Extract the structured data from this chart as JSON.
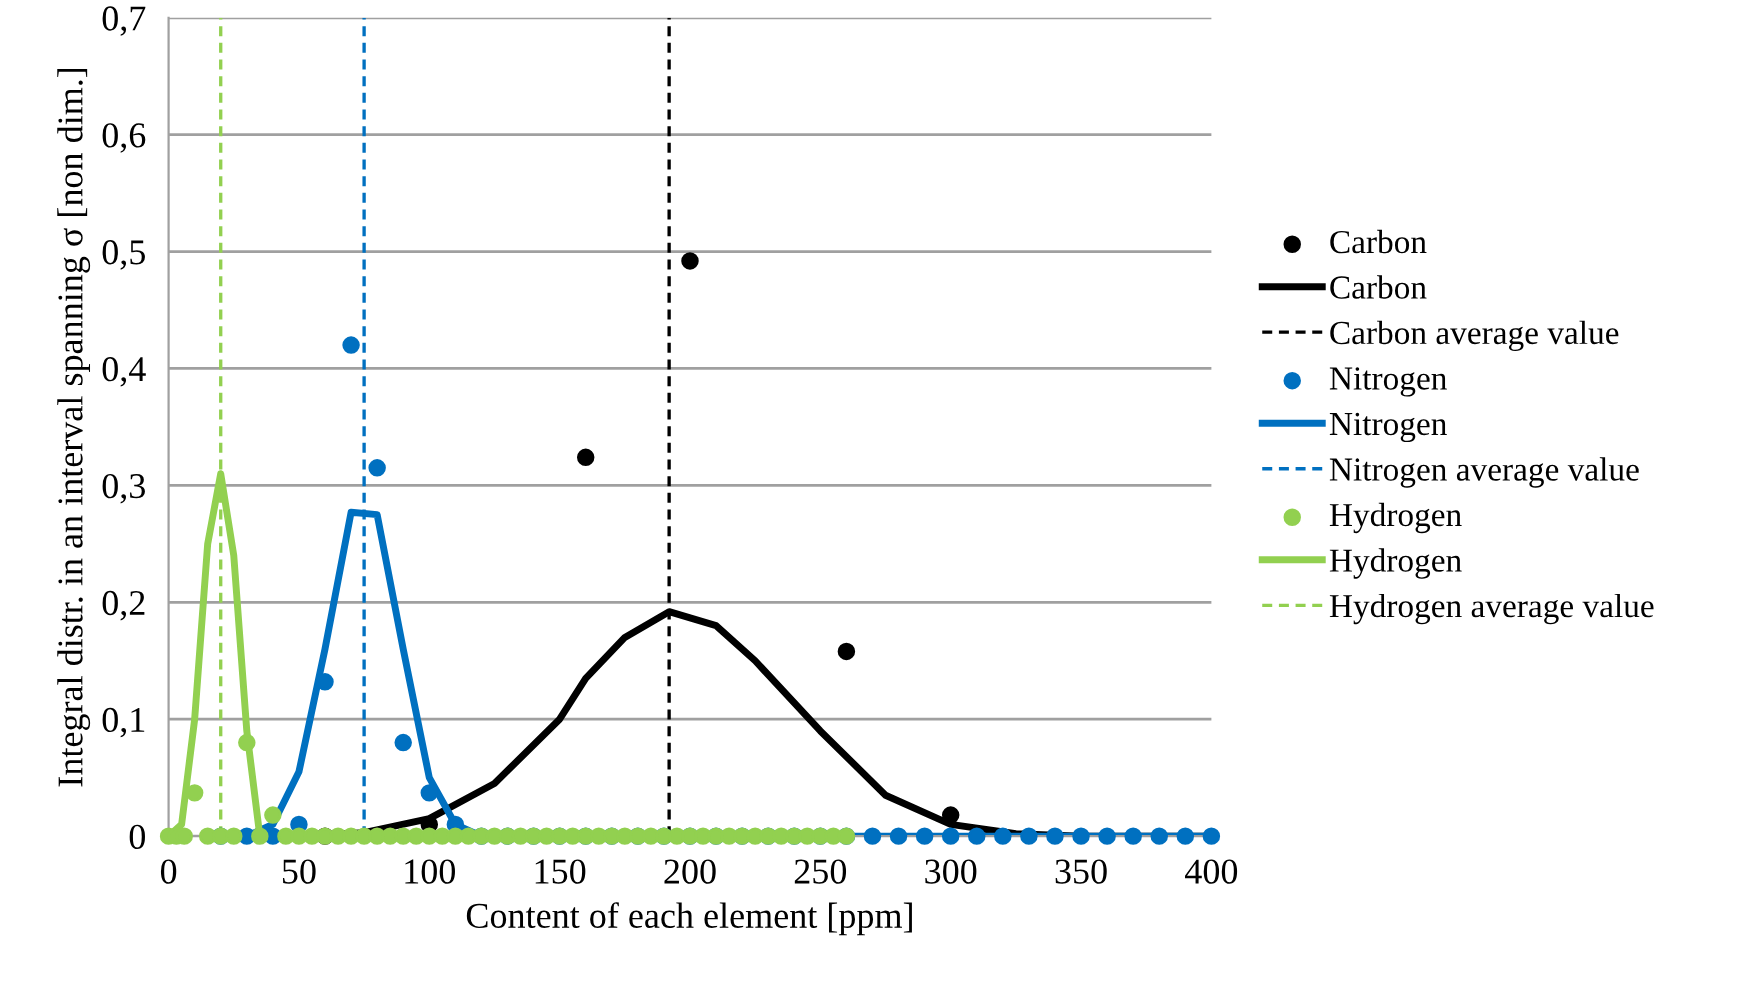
{
  "chart_data": {
    "type": "scatter",
    "xlabel": "Content of each element [ppm]",
    "ylabel": "Integral distr. in an interval spanning σ [non dim.]",
    "xlim": [
      0,
      400
    ],
    "xticks": [
      0,
      50,
      100,
      150,
      200,
      250,
      300,
      350,
      400
    ],
    "ylim": [
      0,
      0.7
    ],
    "yticks": [
      0,
      {
        "value": 0.1,
        "label": "0,1"
      },
      {
        "value": 0.2,
        "label": "0,2"
      },
      {
        "value": 0.3,
        "label": "0,3"
      },
      {
        "value": 0.4,
        "label": "0,4"
      },
      {
        "value": 0.5,
        "label": "0,5"
      },
      {
        "value": 0.6,
        "label": "0,6"
      },
      {
        "value": 0.7,
        "label": "0,7"
      }
    ],
    "grid": "y",
    "legend": "right",
    "series": [
      {
        "name": "Carbon",
        "marker": "circle",
        "color": "#000000",
        "x": [
          60,
          100,
          160,
          200,
          260,
          300
        ],
        "values": [
          0,
          0.01,
          0.324,
          0.492,
          0.158,
          0.018
        ]
      },
      {
        "name": "Carbon",
        "type": "line",
        "marker": "none",
        "color": "#000000",
        "x": [
          50,
          75,
          100,
          125,
          150,
          160,
          175,
          192,
          210,
          225,
          250,
          275,
          300,
          325,
          350,
          400
        ],
        "values": [
          0,
          0.003,
          0.015,
          0.045,
          0.1,
          0.135,
          0.17,
          0.192,
          0.18,
          0.15,
          0.09,
          0.035,
          0.01,
          0.002,
          0,
          0
        ]
      },
      {
        "name": "Carbon average value",
        "type": "line",
        "marker": "none",
        "line_style": "dashed",
        "color": "#000000",
        "x": [
          192,
          192
        ],
        "values": [
          0,
          0.7
        ]
      },
      {
        "name": "Nitrogen",
        "marker": "circle",
        "color": "#0070c0",
        "x": [
          20,
          30,
          40,
          50,
          60,
          70,
          80,
          90,
          100,
          110,
          120,
          130,
          140,
          150,
          160,
          170,
          180,
          190,
          200,
          210,
          220,
          230,
          240,
          250,
          260,
          270,
          280,
          290,
          300,
          310,
          320,
          330,
          340,
          350,
          360,
          370,
          380,
          390,
          400
        ],
        "values": [
          0,
          0,
          0,
          0.01,
          0.132,
          0.42,
          0.315,
          0.08,
          0.037,
          0.01,
          0,
          0,
          0,
          0,
          0,
          0,
          0,
          0,
          0,
          0,
          0,
          0,
          0,
          0,
          0,
          0,
          0,
          0,
          0,
          0,
          0,
          0,
          0,
          0,
          0,
          0,
          0,
          0,
          0
        ]
      },
      {
        "name": "Nitrogen",
        "type": "line",
        "marker": "none",
        "color": "#0070c0",
        "x": [
          30,
          40,
          50,
          60,
          70,
          80,
          90,
          100,
          110,
          120,
          400
        ],
        "values": [
          0,
          0.01,
          0.055,
          0.16,
          0.277,
          0.275,
          0.16,
          0.05,
          0.01,
          0,
          0
        ]
      },
      {
        "name": "Nitrogen average value",
        "type": "line",
        "marker": "none",
        "line_style": "dashed",
        "color": "#0070c0",
        "x": [
          75,
          75
        ],
        "values": [
          0,
          0.7
        ]
      },
      {
        "name": "Hydrogen",
        "marker": "circle",
        "color": "#92d050",
        "x": [
          0,
          3,
          6,
          10,
          15,
          20,
          25,
          30,
          35,
          40,
          45,
          50,
          55,
          60,
          65,
          70,
          75,
          80,
          85,
          90,
          95,
          100,
          105,
          110,
          115,
          120,
          125,
          130,
          135,
          140,
          145,
          150,
          155,
          160,
          165,
          170,
          175,
          180,
          185,
          190,
          195,
          200,
          205,
          210,
          215,
          220,
          225,
          230,
          235,
          240,
          245,
          250,
          255,
          260
        ],
        "values": [
          0,
          0,
          0,
          0.037,
          0,
          0,
          0,
          0.08,
          0,
          0.018,
          0,
          0,
          0,
          0,
          0,
          0,
          0,
          0,
          0,
          0,
          0,
          0,
          0,
          0,
          0,
          0,
          0,
          0,
          0,
          0,
          0,
          0,
          0,
          0,
          0,
          0,
          0,
          0,
          0,
          0,
          0,
          0,
          0,
          0,
          0,
          0,
          0,
          0,
          0,
          0,
          0,
          0,
          0,
          0
        ]
      },
      {
        "name": "Hydrogen",
        "type": "line",
        "marker": "none",
        "color": "#92d050",
        "x": [
          0,
          5,
          10,
          15,
          20,
          25,
          30,
          35,
          260
        ],
        "values": [
          0,
          0.01,
          0.1,
          0.25,
          0.31,
          0.24,
          0.09,
          0,
          0
        ]
      },
      {
        "name": "Hydrogen average value",
        "type": "line",
        "marker": "none",
        "line_style": "dashed",
        "color": "#92d050",
        "x": [
          20,
          20
        ],
        "values": [
          0,
          0.7
        ]
      }
    ]
  }
}
